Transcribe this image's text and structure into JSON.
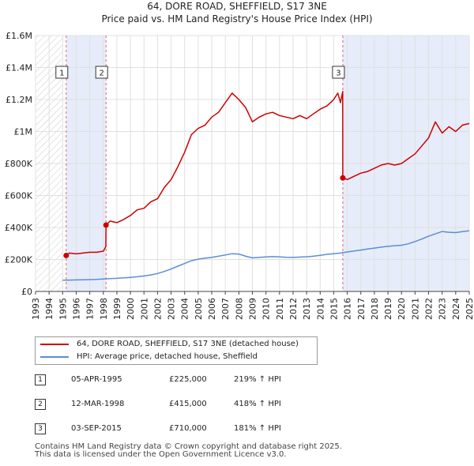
{
  "chart_data": {
    "type": "line",
    "title": "64, DORE ROAD, SHEFFIELD, S17 3NE",
    "subtitle": "Price paid vs. HM Land Registry's House Price Index (HPI)",
    "xlim": [
      1993,
      2025
    ],
    "ylim": [
      0,
      1600000
    ],
    "x_ticks": [
      1993,
      1994,
      1995,
      1996,
      1997,
      1998,
      1999,
      2000,
      2001,
      2002,
      2003,
      2004,
      2005,
      2006,
      2007,
      2008,
      2009,
      2010,
      2011,
      2012,
      2013,
      2014,
      2015,
      2016,
      2017,
      2018,
      2019,
      2020,
      2021,
      2022,
      2023,
      2024,
      2025
    ],
    "y_ticks": [
      {
        "value": 0,
        "label": "£0"
      },
      {
        "value": 200000,
        "label": "£200K"
      },
      {
        "value": 400000,
        "label": "£400K"
      },
      {
        "value": 600000,
        "label": "£600K"
      },
      {
        "value": 800000,
        "label": "£800K"
      },
      {
        "value": 1000000,
        "label": "£1M"
      },
      {
        "value": 1200000,
        "label": "£1.2M"
      },
      {
        "value": 1400000,
        "label": "£1.4M"
      },
      {
        "value": 1600000,
        "label": "£1.6M"
      }
    ],
    "grid": true,
    "hatched_before": 1995.0,
    "shaded_spans": [
      [
        1995.26,
        1998.2
      ],
      [
        2015.67,
        2025
      ]
    ],
    "series": [
      {
        "name": "64, DORE ROAD, SHEFFIELD, S17 3NE (detached house)",
        "color": "#cc0000",
        "x": [
          1995.26,
          1995.5,
          1996.0,
          1996.5,
          1997.0,
          1997.5,
          1998.0,
          1998.19,
          1998.2,
          1998.5,
          1999.0,
          1999.5,
          2000.0,
          2000.5,
          2001.0,
          2001.5,
          2002.0,
          2002.5,
          2003.0,
          2003.5,
          2004.0,
          2004.5,
          2005.0,
          2005.5,
          2006.0,
          2006.5,
          2007.0,
          2007.5,
          2008.0,
          2008.5,
          2009.0,
          2009.5,
          2010.0,
          2010.5,
          2011.0,
          2011.5,
          2012.0,
          2012.5,
          2013.0,
          2013.5,
          2014.0,
          2014.5,
          2015.0,
          2015.3,
          2015.5,
          2015.66,
          2015.67,
          2016.0,
          2016.5,
          2017.0,
          2017.5,
          2018.0,
          2018.5,
          2019.0,
          2019.5,
          2020.0,
          2020.5,
          2021.0,
          2021.5,
          2022.0,
          2022.5,
          2023.0,
          2023.5,
          2024.0,
          2024.5,
          2025.0
        ],
        "values": [
          225000,
          240000,
          235000,
          240000,
          245000,
          245000,
          252000,
          280000,
          415000,
          440000,
          430000,
          450000,
          475000,
          510000,
          520000,
          560000,
          580000,
          650000,
          700000,
          780000,
          870000,
          980000,
          1020000,
          1040000,
          1090000,
          1120000,
          1180000,
          1240000,
          1200000,
          1150000,
          1060000,
          1090000,
          1110000,
          1120000,
          1100000,
          1090000,
          1080000,
          1100000,
          1080000,
          1110000,
          1140000,
          1160000,
          1200000,
          1240000,
          1180000,
          1250000,
          710000,
          700000,
          720000,
          740000,
          750000,
          770000,
          790000,
          800000,
          790000,
          800000,
          830000,
          860000,
          910000,
          960000,
          1060000,
          990000,
          1030000,
          1000000,
          1040000,
          1050000
        ]
      },
      {
        "name": "HPI: Average price, detached house, Sheffield",
        "color": "#5b8ed6",
        "x": [
          1995.0,
          1995.5,
          1996.0,
          1996.5,
          1997.0,
          1997.5,
          1998.0,
          1998.5,
          1999.0,
          1999.5,
          2000.0,
          2000.5,
          2001.0,
          2001.5,
          2002.0,
          2002.5,
          2003.0,
          2003.5,
          2004.0,
          2004.5,
          2005.0,
          2005.5,
          2006.0,
          2006.5,
          2007.0,
          2007.5,
          2008.0,
          2008.5,
          2009.0,
          2009.5,
          2010.0,
          2010.5,
          2011.0,
          2011.5,
          2012.0,
          2012.5,
          2013.0,
          2013.5,
          2014.0,
          2014.5,
          2015.0,
          2015.5,
          2016.0,
          2016.5,
          2017.0,
          2017.5,
          2018.0,
          2018.5,
          2019.0,
          2019.5,
          2020.0,
          2020.5,
          2021.0,
          2021.5,
          2022.0,
          2022.5,
          2023.0,
          2023.5,
          2024.0,
          2024.5,
          2025.0
        ],
        "values": [
          70000,
          71000,
          72000,
          73000,
          74000,
          75000,
          78000,
          80000,
          82000,
          85000,
          88000,
          92000,
          97000,
          103000,
          112000,
          125000,
          140000,
          158000,
          175000,
          192000,
          202000,
          208000,
          213000,
          220000,
          228000,
          236000,
          234000,
          220000,
          210000,
          213000,
          216000,
          218000,
          216000,
          214000,
          213000,
          215000,
          217000,
          220000,
          226000,
          232000,
          236000,
          240000,
          247000,
          253000,
          259000,
          265000,
          271000,
          277000,
          282000,
          286000,
          289000,
          298000,
          312000,
          328000,
          345000,
          360000,
          375000,
          370000,
          368000,
          374000,
          380000
        ]
      }
    ],
    "transactions": [
      {
        "label": "1",
        "x": 1995.26,
        "value": 225000
      },
      {
        "label": "2",
        "x": 1998.2,
        "value": 415000
      },
      {
        "label": "3",
        "x": 2015.67,
        "value": 710000
      }
    ]
  },
  "legend": {
    "items": [
      {
        "label": "64, DORE ROAD, SHEFFIELD, S17 3NE (detached house)",
        "color": "#cc0000"
      },
      {
        "label": "HPI: Average price, detached house, Sheffield",
        "color": "#5b8ed6"
      }
    ]
  },
  "table": {
    "rows": [
      {
        "num": "1",
        "date": "05-APR-1995",
        "price": "£225,000",
        "hpi": "219% ↑ HPI"
      },
      {
        "num": "2",
        "date": "12-MAR-1998",
        "price": "£415,000",
        "hpi": "418% ↑ HPI"
      },
      {
        "num": "3",
        "date": "03-SEP-2015",
        "price": "£710,000",
        "hpi": "181% ↑ HPI"
      }
    ]
  },
  "footer": {
    "line1": "Contains HM Land Registry data © Crown copyright and database right 2025.",
    "line2": "This data is licensed under the Open Government Licence v3.0."
  }
}
